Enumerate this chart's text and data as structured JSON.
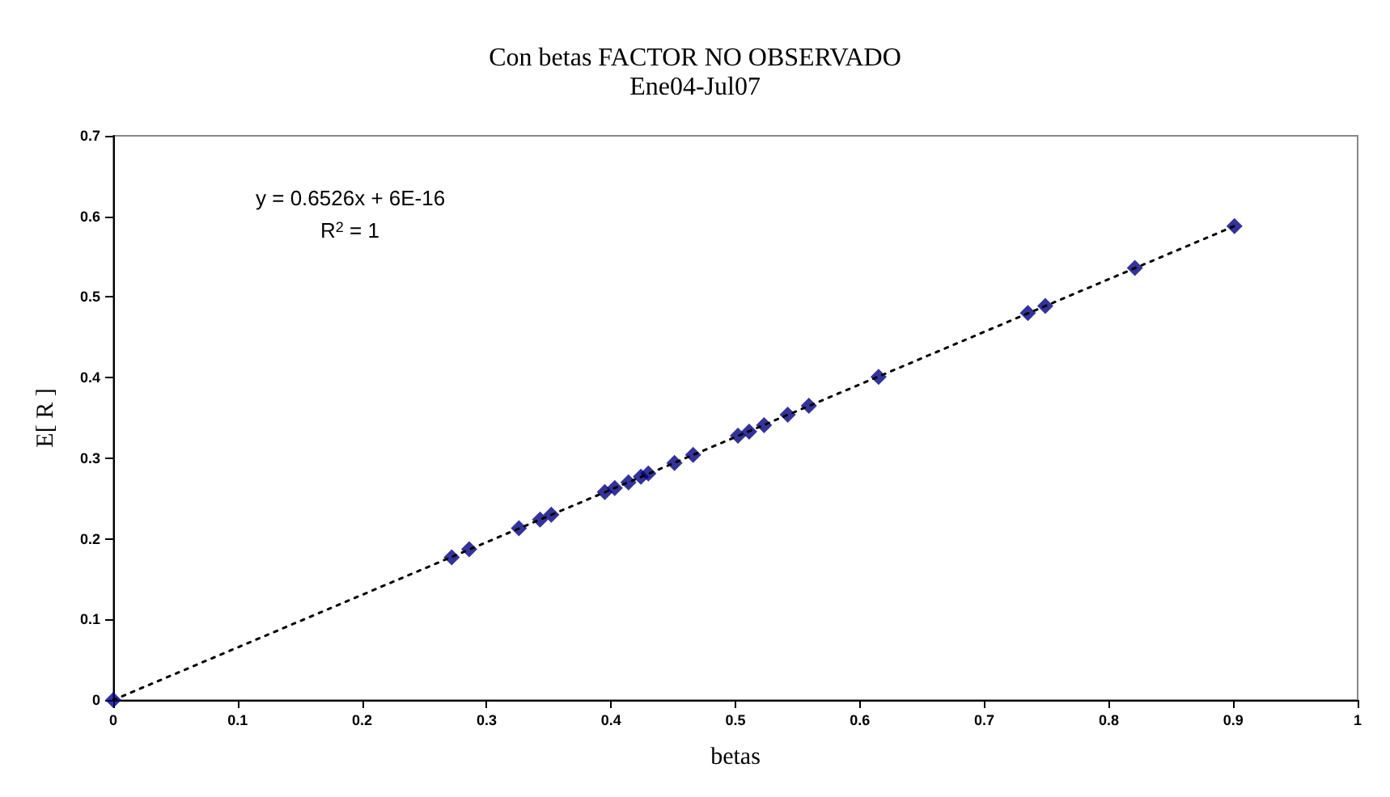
{
  "chart_data": {
    "type": "scatter",
    "title": "Con betas FACTOR NO OBSERVADO",
    "subtitle": "Ene04-Jul07",
    "xlabel": "betas",
    "ylabel": "E[ R ]",
    "x": [
      0,
      0.272,
      0.286,
      0.326,
      0.343,
      0.352,
      0.395,
      0.403,
      0.414,
      0.424,
      0.43,
      0.451,
      0.466,
      0.502,
      0.511,
      0.523,
      0.542,
      0.559,
      0.615,
      0.735,
      0.749,
      0.821,
      0.901
    ],
    "series": [
      {
        "color": "#000080",
        "marker": "diamond",
        "values": [
          0,
          0.177,
          0.187,
          0.213,
          0.224,
          0.23,
          0.258,
          0.263,
          0.27,
          0.277,
          0.281,
          0.294,
          0.304,
          0.328,
          0.333,
          0.341,
          0.354,
          0.365,
          0.401,
          0.48,
          0.489,
          0.536,
          0.588
        ]
      },
      {
        "type": "line",
        "color": "#000000",
        "line_style": "dotted",
        "marker": "none",
        "x": [
          0,
          0.901
        ],
        "values": [
          0,
          0.588
        ]
      }
    ],
    "annotations": [
      "y = 0.6526x + 6E-16",
      "R$^{2}$ = 1"
    ],
    "xlim": [
      0,
      1
    ],
    "xticks": [
      0,
      0.1,
      0.2,
      0.3,
      0.4,
      0.5,
      0.6,
      0.7,
      0.8,
      0.9,
      1
    ],
    "ylim": [
      0,
      0.7
    ],
    "yticks": [
      0,
      0.1,
      0.2,
      0.3,
      0.4,
      0.5,
      0.6,
      0.7
    ],
    "grid": false
  }
}
